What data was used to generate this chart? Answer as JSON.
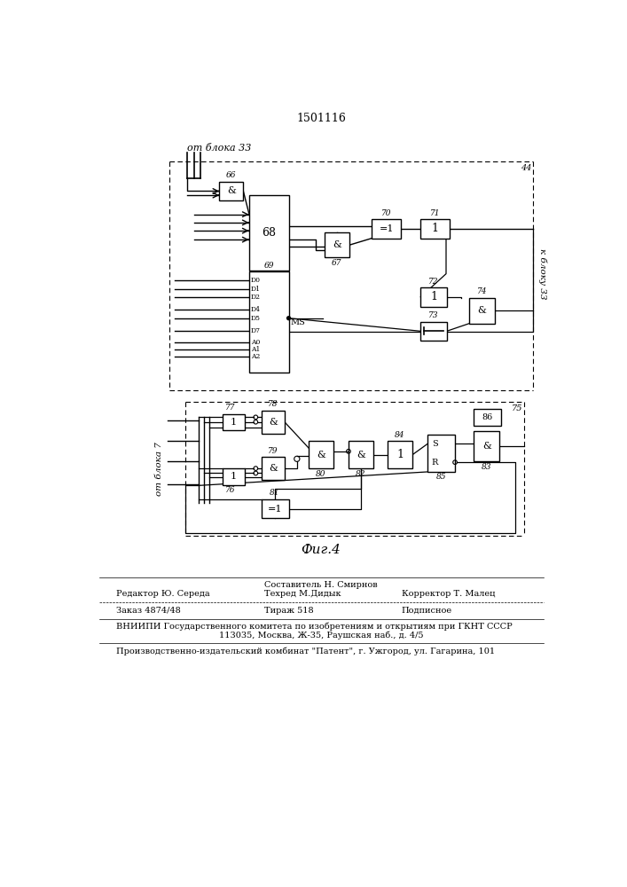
{
  "title": "1501116",
  "fig_label": "Фиг.4",
  "from_block33": "от блока 33",
  "to_block33": "к блоку 33",
  "from_block7": "от блока 7",
  "footer_line1_center": "Составитель Н. Смирнов",
  "footer_line2_left": "Редактор Ю. Середа",
  "footer_line2_center": "Техред М.Дидык",
  "footer_line2_right": "Корректор Т. Малец",
  "footer_line3_left": "Заказ 4874/48",
  "footer_line3_center": "Тираж 518",
  "footer_line3_right": "Подписное",
  "footer_line4": "ВНИИПИ Государственного комитета по изобретениям и открытиям при ГКНТ СССР",
  "footer_line5": "113035, Москва, Ж-35, Раушская наб., д. 4/5",
  "footer_line6": "Производственно-издательский комбинат \"Патент\", г. Ужгород, ул. Гагарина, 101",
  "bg_color": "#ffffff",
  "line_color": "#000000"
}
